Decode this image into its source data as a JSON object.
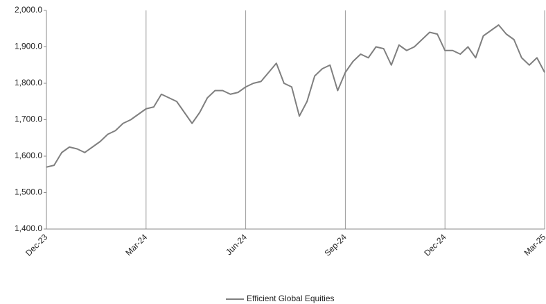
{
  "chart_data": {
    "type": "line",
    "categories": [
      "Dec-23",
      null,
      null,
      null,
      null,
      null,
      null,
      null,
      null,
      null,
      null,
      null,
      null,
      "Mar-24",
      null,
      null,
      null,
      null,
      null,
      null,
      null,
      null,
      null,
      null,
      null,
      null,
      "Jun-24",
      null,
      null,
      null,
      null,
      null,
      null,
      null,
      null,
      null,
      null,
      null,
      null,
      "Sep-24",
      null,
      null,
      null,
      null,
      null,
      null,
      null,
      null,
      null,
      null,
      null,
      null,
      "Dec-24",
      null,
      null,
      null,
      null,
      null,
      null,
      null,
      null,
      null,
      null,
      null,
      null,
      "Mar-25"
    ],
    "series": [
      {
        "name": "Efficient Global Equities",
        "color": "#7f7f7f",
        "values": [
          1570,
          1575,
          1610,
          1625,
          1620,
          1610,
          1625,
          1640,
          1660,
          1670,
          1690,
          1700,
          1715,
          1730,
          1735,
          1770,
          1760,
          1750,
          1720,
          1690,
          1720,
          1760,
          1780,
          1780,
          1770,
          1775,
          1790,
          1800,
          1805,
          1830,
          1855,
          1800,
          1790,
          1710,
          1750,
          1820,
          1840,
          1850,
          1780,
          1830,
          1860,
          1880,
          1870,
          1900,
          1895,
          1850,
          1905,
          1890,
          1900,
          1920,
          1940,
          1935,
          1890,
          1890,
          1880,
          1900,
          1870,
          1930,
          1945,
          1960,
          1935,
          1920,
          1870,
          1850,
          1870,
          1830
        ]
      }
    ],
    "ylim": [
      1400,
      2000
    ],
    "yticks": [
      {
        "value": 1400,
        "label": "1,400.0"
      },
      {
        "value": 1500,
        "label": "1,500.0"
      },
      {
        "value": 1600,
        "label": "1,600.0"
      },
      {
        "value": 1700,
        "label": "1,700.0"
      },
      {
        "value": 1800,
        "label": "1,800.0"
      },
      {
        "value": 1900,
        "label": "1,900.0"
      },
      {
        "value": 2000,
        "label": "2,000.0"
      }
    ],
    "grid": true,
    "legend": "bottom"
  }
}
